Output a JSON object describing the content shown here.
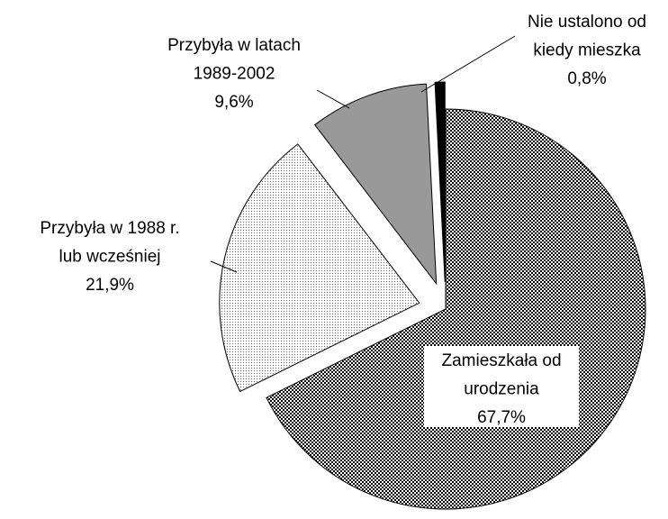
{
  "chart_data": {
    "type": "pie",
    "categories": [
      "Zamieszkała od\nurodzenia",
      "Przybyła w 1988 r.\nlub wcześniej",
      "Przybyła w latach\n1989-2002",
      "Nie ustalono od\nkiedy mieszka"
    ],
    "values": [
      67.7,
      21.9,
      9.6,
      0.8
    ],
    "value_labels": [
      "67,7%",
      "21,9%",
      "9,6%",
      "0,8%"
    ]
  }
}
